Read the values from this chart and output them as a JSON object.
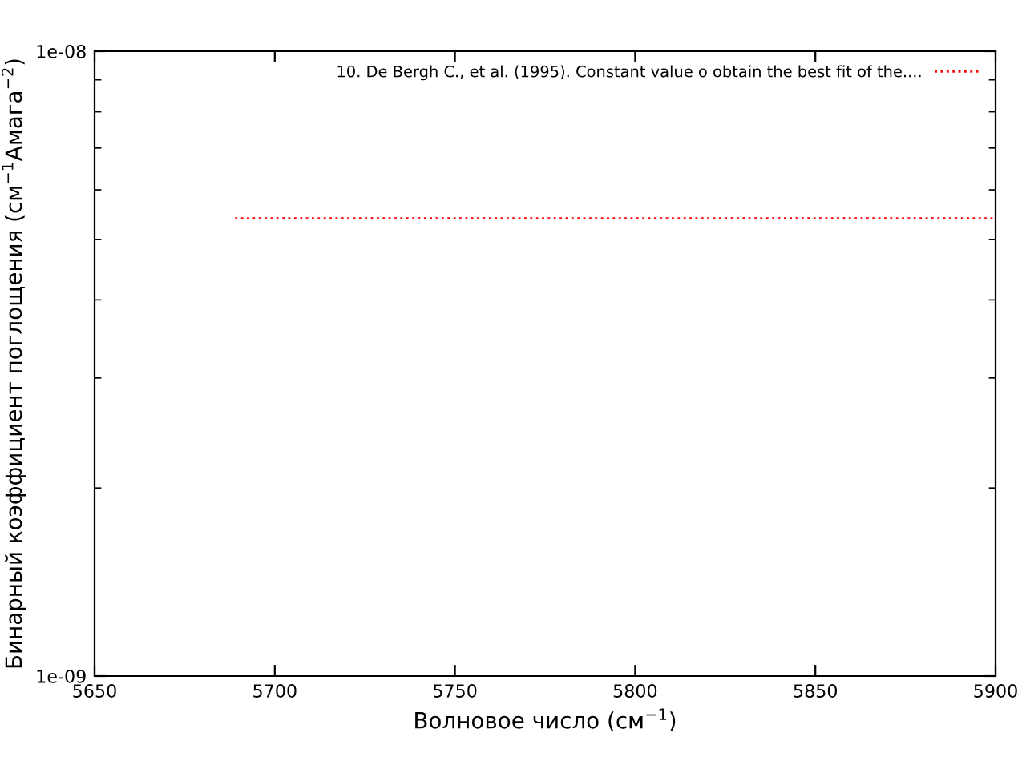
{
  "chart_data": {
    "type": "line",
    "xlabel": "Волновое число (см$^{−1}$)",
    "ylabel": "Бинарный коэффициент поглощения (см$^{−1}$Амага$^{−2}$)",
    "series": [
      {
        "name": "10. De Bergh C., et al. (1995). Constant value o obtain the best fit of the....",
        "color": "#ff0000",
        "x": [
          5689,
          5900
        ],
        "values": [
          5.4e-09,
          5.4e-09
        ],
        "line_style": "dotted"
      }
    ],
    "log": "y",
    "xlim": [
      5650,
      5900
    ],
    "xticks": [
      5650,
      5700,
      5750,
      5800,
      5850,
      5900
    ],
    "ylim": [
      1e-09,
      1e-08
    ],
    "yticks": [
      {
        "value": 1e-09,
        "label": "1e-09"
      },
      {
        "value": 1e-08,
        "label": "1e-08"
      }
    ],
    "grid": false,
    "legend": "top right"
  }
}
